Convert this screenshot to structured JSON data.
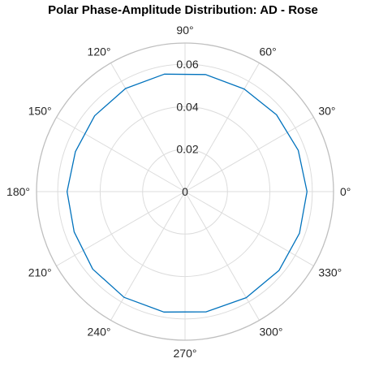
{
  "chart_data": {
    "type": "line",
    "coordinate_system": "polar",
    "title": "Polar Phase-Amplitude Distribution: AD - Rose",
    "theta_tick_labels": [
      "0°",
      "30°",
      "60°",
      "90°",
      "120°",
      "150°",
      "180°",
      "210°",
      "240°",
      "270°",
      "300°",
      "330°"
    ],
    "theta_ticks_deg": [
      0,
      30,
      60,
      90,
      120,
      150,
      180,
      210,
      240,
      270,
      300,
      330
    ],
    "r_tick_labels": [
      "0",
      "0.02",
      "0.04",
      "0.06"
    ],
    "r_ticks": [
      0,
      0.02,
      0.04,
      0.06
    ],
    "rlim": [
      0,
      0.07
    ],
    "grid": true,
    "series": [
      {
        "color": "#0072BD",
        "theta_deg": [
          0,
          20,
          40,
          60,
          80,
          100,
          120,
          140,
          160,
          180,
          200,
          220,
          240,
          260,
          280,
          300,
          320,
          340,
          360
        ],
        "r": [
          0.0575,
          0.0568,
          0.0563,
          0.0558,
          0.056,
          0.0562,
          0.0561,
          0.0556,
          0.055,
          0.0556,
          0.0556,
          0.0568,
          0.0575,
          0.0576,
          0.0575,
          0.0577,
          0.0578,
          0.0574,
          0.0575
        ]
      }
    ],
    "colors": {
      "grid": "#dcdcdc",
      "outer_circle": "#bfbfbf",
      "tick_text": "#262626",
      "line": "#0072BD"
    }
  }
}
